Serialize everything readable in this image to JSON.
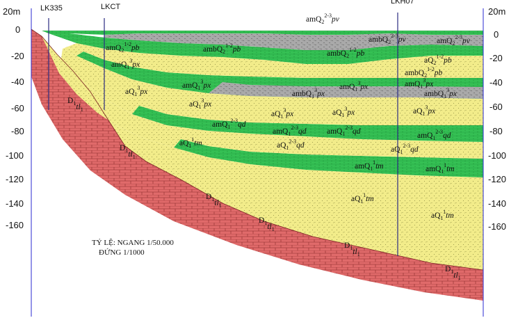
{
  "depth_axis": {
    "top_label": "20m",
    "ticks": [
      "0",
      "-20",
      "-40",
      "-60",
      "-80",
      "-100",
      "-120",
      "-140",
      "-160"
    ]
  },
  "boreholes": [
    "LK335",
    "LKCT",
    "LKH07"
  ],
  "scale": {
    "horizontal": "TỶ LỆ: NGANG 1/50.000",
    "vertical": "ĐỨNG 1/1000"
  },
  "units": {
    "amQ2_pv": {
      "base": "amQ",
      "sub": "2",
      "sup": "2-3",
      "suffix": "pv"
    },
    "amQ2_pb": {
      "base": "amQ",
      "sub": "2",
      "sup": "1-2",
      "suffix": "pb"
    },
    "ambQ2_pb": {
      "base": "ambQ",
      "sub": "2",
      "sup": "1-2",
      "suffix": "pb"
    },
    "aQ2_pb": {
      "base": "aQ",
      "sub": "2",
      "sup": "1-2",
      "suffix": "pb"
    },
    "ambQ2_pv": {
      "base": "ambQ",
      "sub": "2",
      "sup": "2-3",
      "suffix": "pv"
    },
    "amQ1_px": {
      "base": "amQ",
      "sub": "1",
      "sup": "3",
      "suffix": "px"
    },
    "ambQ1_px": {
      "base": "ambQ",
      "sub": "1",
      "sup": "3",
      "suffix": "px"
    },
    "aQ1_px": {
      "base": "aQ",
      "sub": "1",
      "sup": "3",
      "suffix": "px"
    },
    "amQ1_qd": {
      "base": "amQ",
      "sub": "1",
      "sup": "2-3",
      "suffix": "qd"
    },
    "aQ1_qd": {
      "base": "aQ",
      "sub": "1",
      "sup": "2-3",
      "suffix": "qd"
    },
    "amQ1_tm": {
      "base": "amQ",
      "sub": "1",
      "sup": "1",
      "suffix": "tm"
    },
    "aQ1_tm": {
      "base": "aQ",
      "sub": "1",
      "sup": "1",
      "suffix": "tm"
    },
    "D1_tl": {
      "base": "D",
      "sub": "1",
      "sup": "",
      "suffix": "tl",
      "suffix_sub": "1"
    }
  },
  "colors": {
    "bedrock": "#e06a6a",
    "brick_line": "#8a2a2a",
    "sand": "#f2ec8a",
    "sand_dot": "#8a8a40",
    "clay_green": "#3fd35f",
    "clay_line": "#0f7a2a",
    "silt_gray": "#a9a9a9",
    "silt_dot": "#555555",
    "axis": "#2a2ad0",
    "well": "#2a2a80"
  }
}
